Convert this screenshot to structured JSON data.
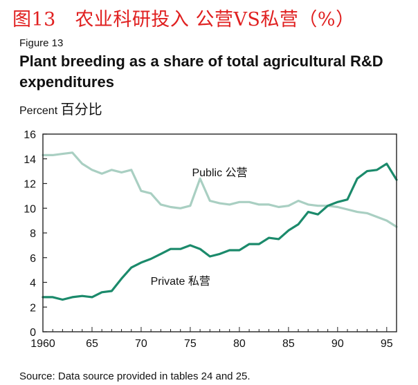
{
  "header": {
    "cn_title": "图13　农业科研投入 公营VS私营（%）",
    "figure_label": "Figure 13",
    "title": "Plant breeding as a share of total agricultural R&D expenditures",
    "unit_en": "Percent",
    "unit_cn": "百分比"
  },
  "footer": {
    "source": "Source: Data source provided in tables 24 and 25."
  },
  "chart_data": {
    "type": "line",
    "x_ticks": [
      1960,
      1965,
      1970,
      1975,
      1980,
      1985,
      1990,
      1995
    ],
    "x_tick_labels": [
      "1960",
      "65",
      "70",
      "75",
      "80",
      "85",
      "90",
      "95"
    ],
    "xlim": [
      1960,
      1996
    ],
    "ylim": [
      0,
      16
    ],
    "y_ticks": [
      0,
      2,
      4,
      6,
      8,
      10,
      12,
      14,
      16
    ],
    "grid": false,
    "x": [
      1960,
      1961,
      1962,
      1963,
      1964,
      1965,
      1966,
      1967,
      1968,
      1969,
      1970,
      1971,
      1972,
      1973,
      1974,
      1975,
      1976,
      1977,
      1978,
      1979,
      1980,
      1981,
      1982,
      1983,
      1984,
      1985,
      1986,
      1987,
      1988,
      1989,
      1990,
      1991,
      1992,
      1993,
      1994,
      1995,
      1996
    ],
    "series": [
      {
        "name": "Public 公营",
        "color": "#a9cfc2",
        "values": [
          14.3,
          14.3,
          14.4,
          14.5,
          13.6,
          13.1,
          12.8,
          13.1,
          12.9,
          13.1,
          11.4,
          11.2,
          10.3,
          10.1,
          10.0,
          10.2,
          12.4,
          10.6,
          10.4,
          10.3,
          10.5,
          10.5,
          10.3,
          10.3,
          10.1,
          10.2,
          10.6,
          10.3,
          10.2,
          10.2,
          10.1,
          9.9,
          9.7,
          9.6,
          9.3,
          9.0,
          8.5
        ]
      },
      {
        "name": "Private 私营",
        "color": "#1b8a6b",
        "values": [
          2.8,
          2.8,
          2.6,
          2.8,
          2.9,
          2.8,
          3.2,
          3.3,
          4.3,
          5.2,
          5.6,
          5.9,
          6.3,
          6.7,
          6.7,
          7.0,
          6.7,
          6.1,
          6.3,
          6.6,
          6.6,
          7.1,
          7.1,
          7.6,
          7.5,
          8.2,
          8.7,
          9.7,
          9.5,
          10.2,
          10.5,
          10.7,
          12.4,
          13.0,
          13.1,
          13.6,
          12.3
        ]
      }
    ]
  }
}
